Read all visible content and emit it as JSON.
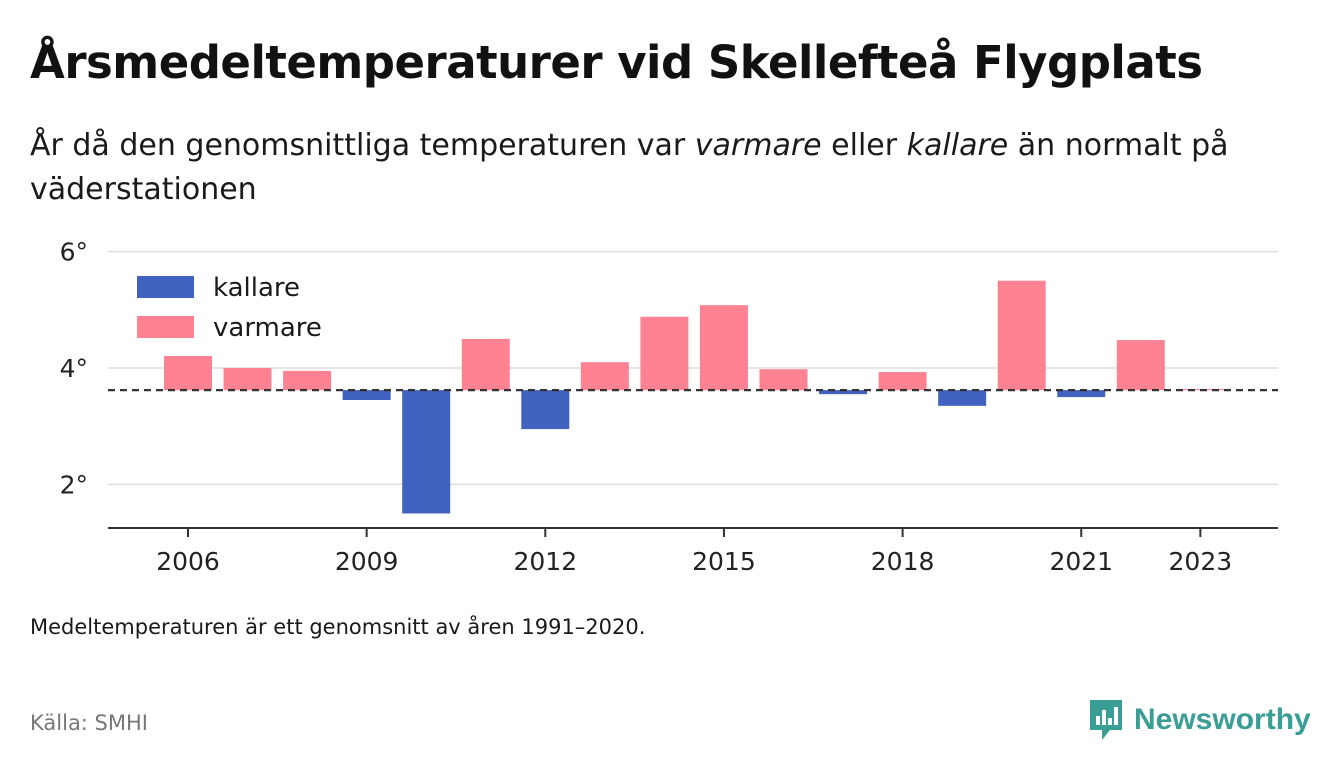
{
  "title": "Årsmedeltemperaturer vid Skellefteå Flygplats",
  "subtitle": {
    "part1": "År då den genomsnittliga temperaturen var ",
    "warm_word": "varmare",
    "part2": " eller ",
    "cold_word": "kallare",
    "part3": " än normalt på väderstationen"
  },
  "note": "Medeltemperaturen är ett genomsnitt av åren 1991–2020.",
  "source": "Källa: SMHI",
  "brand": {
    "name": "Newsworthy",
    "icon": "newsworthy-logo-icon",
    "color": "#3a9e94"
  },
  "chart_data": {
    "type": "bar",
    "baseline": 3.62,
    "x": [
      2006,
      2007,
      2008,
      2009,
      2010,
      2011,
      2012,
      2013,
      2014,
      2015,
      2016,
      2017,
      2018,
      2019,
      2020,
      2021,
      2022,
      2023
    ],
    "values": [
      4.28,
      4.0,
      3.95,
      3.45,
      1.5,
      4.5,
      2.95,
      4.1,
      4.88,
      5.08,
      3.98,
      3.55,
      3.93,
      3.35,
      5.5,
      3.5,
      4.48,
      3.64
    ],
    "ylim": [
      1.25,
      6.2
    ],
    "yticks": [
      2,
      4,
      6
    ],
    "ytick_labels": [
      "2°",
      "4°",
      "6°"
    ],
    "xticks": [
      2006,
      2009,
      2012,
      2015,
      2018,
      2021,
      2023
    ],
    "xtick_labels": [
      "2006",
      "2009",
      "2012",
      "2015",
      "2018",
      "2021",
      "2023"
    ],
    "series": [
      {
        "name": "kallare",
        "color": "#4262bf"
      },
      {
        "name": "varmare",
        "color": "#ff8293"
      }
    ],
    "legend_position": "top-left",
    "grid": true,
    "colors": {
      "grid": "#dddddd",
      "axis": "#333333",
      "baseline": "#333333"
    }
  }
}
